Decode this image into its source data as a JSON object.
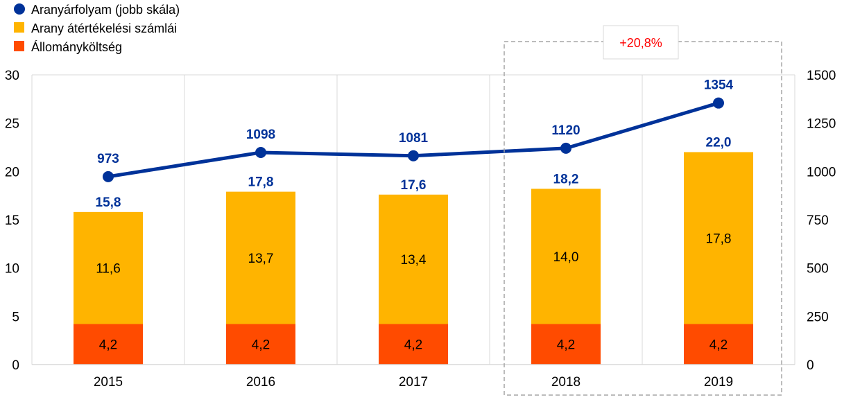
{
  "chart_data": {
    "type": "bar",
    "subtype": "stacked bar with line on secondary axis",
    "categories": [
      "2015",
      "2016",
      "2017",
      "2018",
      "2019"
    ],
    "series": [
      {
        "name": "Állományköltség",
        "kind": "bar",
        "axis": "left",
        "values": [
          4.2,
          4.2,
          4.2,
          4.2,
          4.2
        ],
        "labels": [
          "4,2",
          "4,2",
          "4,2",
          "4,2",
          "4,2"
        ]
      },
      {
        "name": "Arany átértékelési számlái",
        "kind": "bar",
        "axis": "left",
        "values": [
          11.6,
          13.7,
          13.4,
          14.0,
          17.8
        ],
        "labels": [
          "11,6",
          "13,7",
          "13,4",
          "14,0",
          "17,8"
        ]
      },
      {
        "name": "Aranyárfolyam (jobb skála)",
        "kind": "line",
        "axis": "right",
        "values": [
          973,
          1098,
          1081,
          1120,
          1354
        ],
        "labels": [
          "973",
          "1098",
          "1081",
          "1120",
          "1354"
        ]
      }
    ],
    "totals": [
      15.8,
      17.8,
      17.6,
      18.2,
      22.0
    ],
    "total_labels": [
      "15,8",
      "17,8",
      "17,6",
      "18,2",
      "22,0"
    ],
    "left_axis": {
      "range": [
        0,
        30
      ],
      "ticks": [
        "0",
        "5",
        "10",
        "15",
        "20",
        "25",
        "30"
      ]
    },
    "right_axis": {
      "range": [
        0,
        1500
      ],
      "ticks": [
        "0",
        "250",
        "500",
        "750",
        "1000",
        "1250",
        "1500"
      ]
    },
    "annotation": {
      "text": "+20,8%",
      "highlight_categories": [
        "2018",
        "2019"
      ]
    },
    "legend": {
      "placement": "top-left",
      "order": [
        "Aranyárfolyam (jobb skála)",
        "Arany átértékelési számlái",
        "Állományköltség"
      ]
    },
    "grid": "vertical category separators",
    "colors": {
      "line": "#003299",
      "revaluation": "#FFB400",
      "cost": "#FF4B00",
      "annotation_text": "#FF0000",
      "grid": "#D9D9D9"
    }
  }
}
